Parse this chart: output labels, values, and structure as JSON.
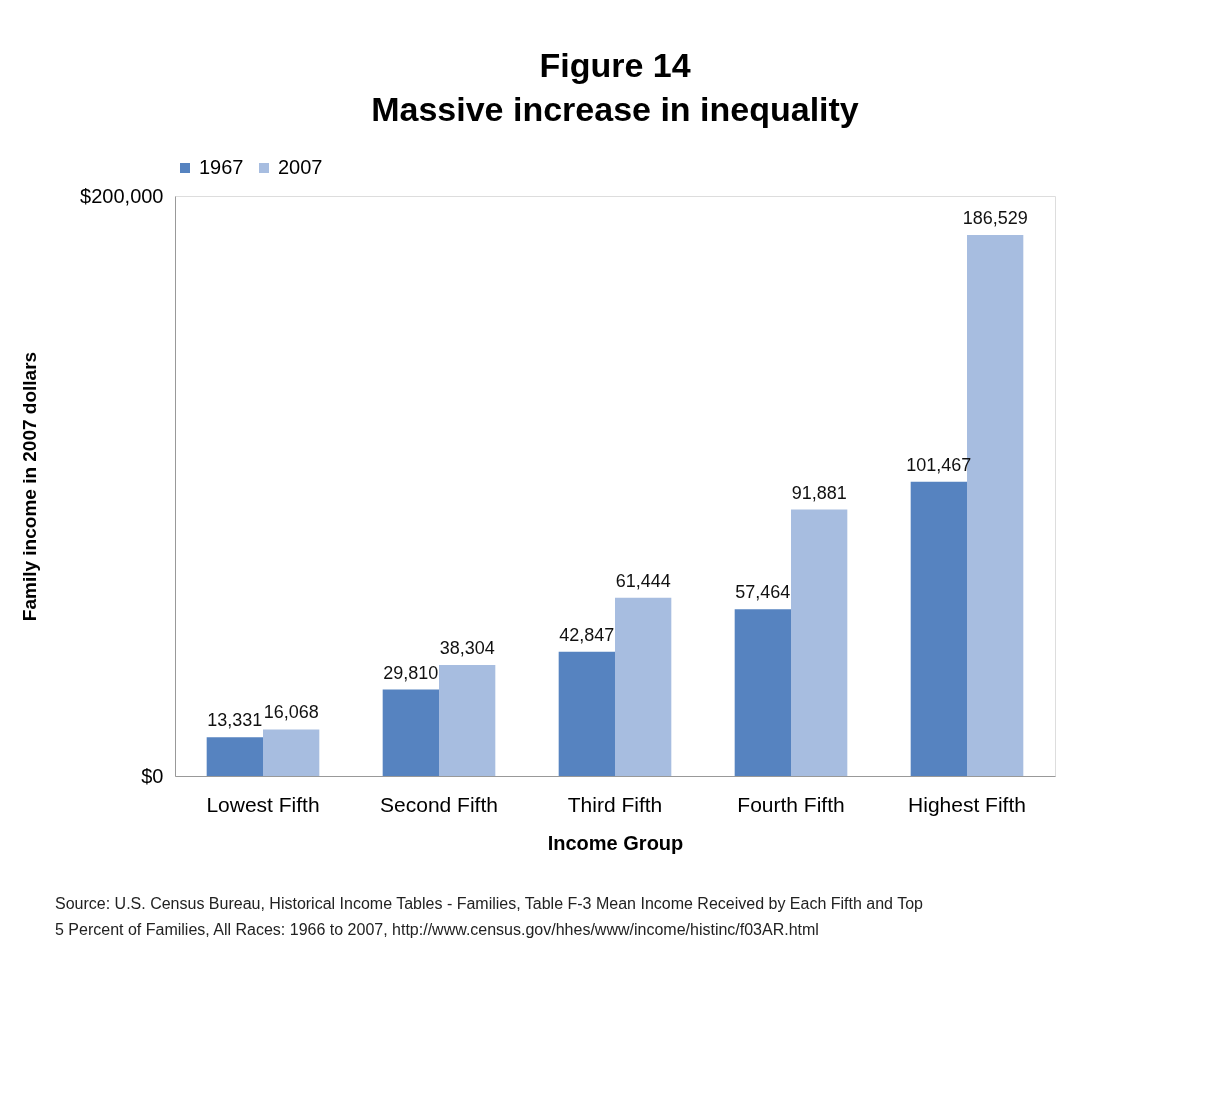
{
  "chart_data": {
    "type": "bar",
    "title": "Figure 14\nMassive increase in inequality",
    "xlabel": "Income Group",
    "ylabel": "Family income in 2007 dollars",
    "categories": [
      "Lowest Fifth",
      "Second Fifth",
      "Third Fifth",
      "Fourth Fifth",
      "Highest Fifth"
    ],
    "series": [
      {
        "name": "1967",
        "color": "#5683c0",
        "values": [
          13331,
          29810,
          42847,
          57464,
          101467
        ],
        "value_labels": [
          "13,331",
          "29,810",
          "42,847",
          "57,464",
          "101,467"
        ]
      },
      {
        "name": "2007",
        "color": "#a7bde0",
        "values": [
          16068,
          38304,
          61444,
          91881,
          186529
        ],
        "value_labels": [
          "16,068",
          "38,304",
          "61,444",
          "91,881",
          "186,529"
        ]
      }
    ],
    "ylim": [
      0,
      200000
    ],
    "yticks": [
      {
        "value": 0,
        "label": "$0"
      },
      {
        "value": 200000,
        "label": "$200,000"
      }
    ],
    "grid": false,
    "legend": "top",
    "annotations": [
      "Source: U.S. Census Bureau, Historical Income Tables - Families, Table F-3 Mean Income Received by Each Fifth and Top 5 Percent of Families, All Races: 1966 to 2007, http://www.census.gov/hhes/www/income/histinc/f03AR.html"
    ]
  }
}
